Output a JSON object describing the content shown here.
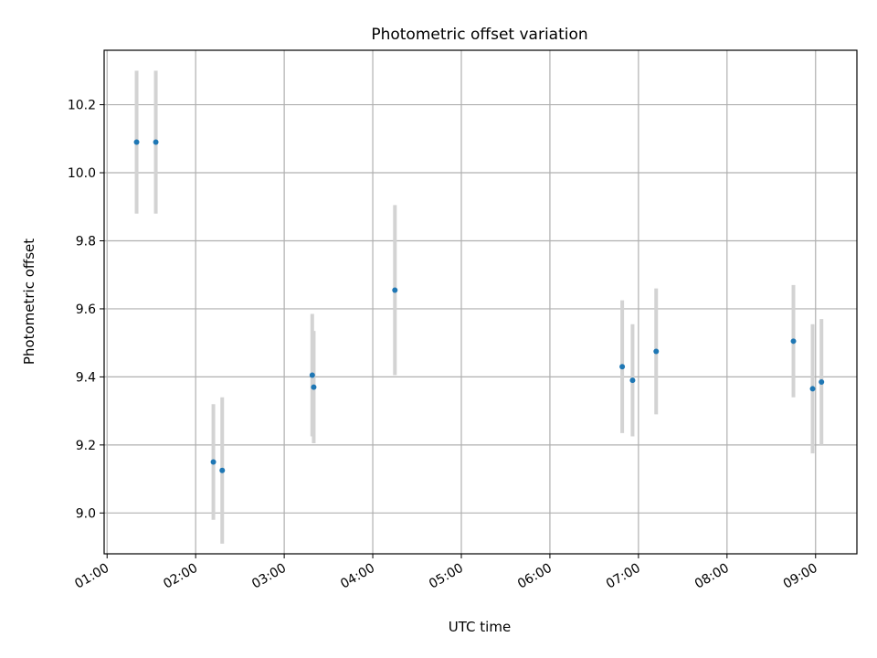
{
  "chart_data": {
    "type": "scatter",
    "title": "Photometric offset variation",
    "xlabel": "UTC time",
    "ylabel": "Photometric offset",
    "xlim": [
      "00:58",
      "09:28"
    ],
    "ylim": [
      8.88,
      10.36
    ],
    "x_ticks": [
      "01:00",
      "02:00",
      "03:00",
      "04:00",
      "05:00",
      "06:00",
      "07:00",
      "08:00",
      "09:00"
    ],
    "y_ticks": [
      "9.0",
      "9.2",
      "9.4",
      "9.6",
      "9.8",
      "10.0",
      "10.2"
    ],
    "grid": true,
    "marker_color": "#1f77b4",
    "errorbar_color": "#d3d3d3",
    "points": [
      {
        "x": "01:20",
        "y": 10.09,
        "err": 0.21
      },
      {
        "x": "01:33",
        "y": 10.09,
        "err": 0.21
      },
      {
        "x": "02:12",
        "y": 9.15,
        "err": 0.17
      },
      {
        "x": "02:18",
        "y": 9.125,
        "err": 0.215
      },
      {
        "x": "03:19",
        "y": 9.405,
        "err": 0.18
      },
      {
        "x": "03:20",
        "y": 9.37,
        "err": 0.165
      },
      {
        "x": "04:15",
        "y": 9.655,
        "err": 0.25
      },
      {
        "x": "06:49",
        "y": 9.43,
        "err": 0.195
      },
      {
        "x": "06:56",
        "y": 9.39,
        "err": 0.165
      },
      {
        "x": "07:12",
        "y": 9.475,
        "err": 0.185
      },
      {
        "x": "08:45",
        "y": 9.505,
        "err": 0.165
      },
      {
        "x": "08:58",
        "y": 9.365,
        "err": 0.19
      },
      {
        "x": "09:04",
        "y": 9.385,
        "err": 0.185
      }
    ]
  }
}
